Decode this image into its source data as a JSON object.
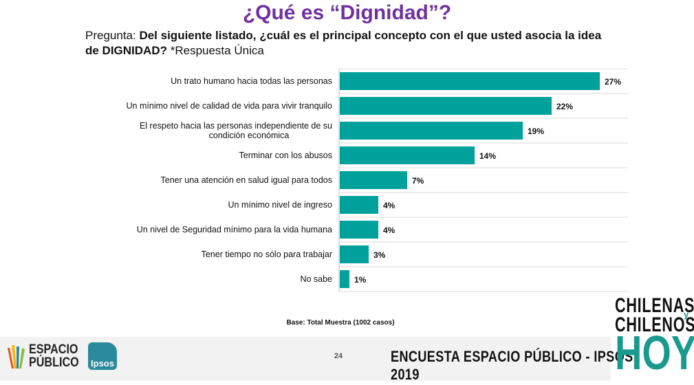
{
  "header": {
    "title": "¿Qué es “Dignidad”?",
    "question_prefix": "Pregunta: ",
    "question_bold": "Del siguiente listado, ¿cuál es el principal concepto con el que usted asocia la idea de DIGNIDAD?",
    "question_suffix": " *Respuesta Única"
  },
  "chart_data": {
    "type": "bar",
    "orientation": "horizontal",
    "categories": [
      "Un trato humano hacia todas las personas",
      "Un mínimo nivel de calidad de vida para vivir tranquilo",
      "El respeto hacia las personas independiente de su condición económica",
      "Terminar con los abusos",
      "Tener una atención en salud igual para todos",
      "Un mínimo nivel de ingreso",
      "Un nivel de Seguridad mínimo para la vida humana",
      "Tener tiempo no sólo para trabajar",
      "No sabe"
    ],
    "values": [
      27,
      22,
      19,
      14,
      7,
      4,
      4,
      3,
      1
    ],
    "value_labels": [
      "27%",
      "22%",
      "19%",
      "14%",
      "7%",
      "4%",
      "4%",
      "3%",
      "1%"
    ],
    "unit": "%",
    "xlim": [
      0,
      30
    ],
    "grid": true,
    "bar_color": "#00a19a"
  },
  "footer": {
    "base_note": "Base: Total Muestra (1002 casos)",
    "page_number": "24",
    "survey_name": "ENCUESTA ESPACIO PÚBLICO - IPSOS 2019",
    "logo_espacio_line1": "ESPACIO",
    "logo_espacio_line2": "PÚBLICO",
    "logo_ipsos": "Ipsos",
    "brand_line1": "CHILENAS",
    "brand_y": "y",
    "brand_line2": "CHILENOS",
    "brand_hoy": "HOY"
  }
}
